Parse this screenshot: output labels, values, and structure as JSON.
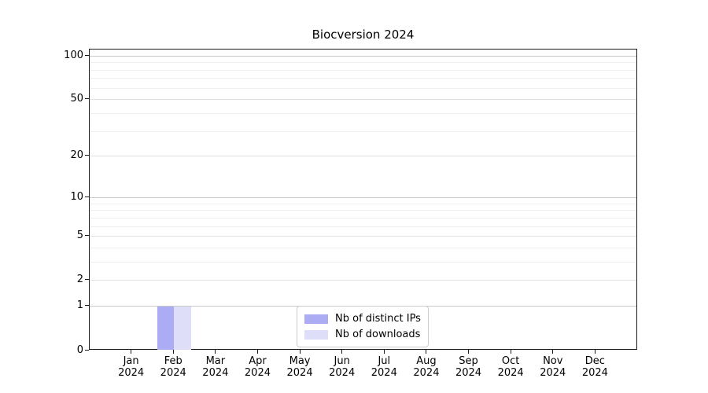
{
  "chart_data": {
    "type": "bar",
    "title": "Biocversion 2024",
    "categories": [
      "Jan 2024",
      "Feb 2024",
      "Mar 2024",
      "Apr 2024",
      "May 2024",
      "Jun 2024",
      "Jul 2024",
      "Aug 2024",
      "Sep 2024",
      "Oct 2024",
      "Nov 2024",
      "Dec 2024"
    ],
    "series": [
      {
        "name": "Nb of distinct IPs",
        "color": "#acacf4",
        "values": [
          0,
          1,
          0,
          0,
          0,
          0,
          0,
          0,
          0,
          0,
          0,
          0
        ]
      },
      {
        "name": "Nb of downloads",
        "color": "#dedef8",
        "values": [
          0,
          1,
          0,
          0,
          0,
          0,
          0,
          0,
          0,
          0,
          0,
          0
        ]
      }
    ],
    "xlabel": "",
    "ylabel": "",
    "yscale": "log1p",
    "ylim": [
      0,
      111
    ],
    "yticks": [
      0,
      1,
      2,
      5,
      10,
      20,
      50,
      100
    ],
    "yticks_minor": [
      3,
      4,
      6,
      7,
      8,
      9,
      30,
      40,
      60,
      70,
      80,
      90
    ],
    "grid": "horizontal",
    "legend_position": "bottom-center"
  }
}
